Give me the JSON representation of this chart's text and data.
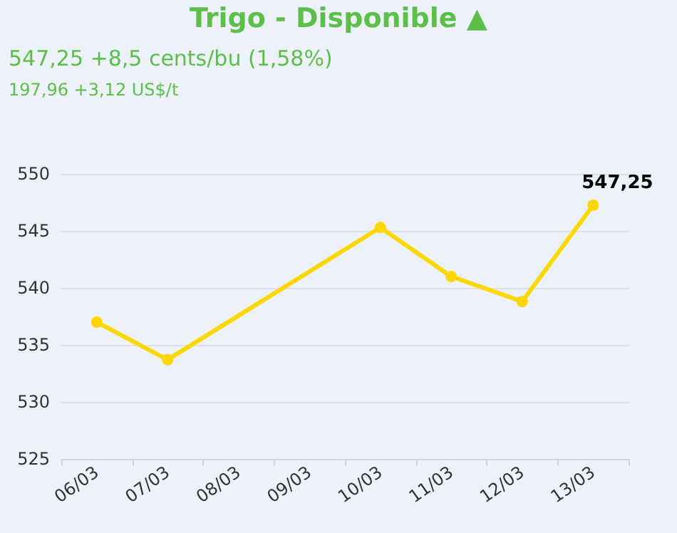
{
  "chart_data": {
    "type": "line",
    "title": "Trigo - Disponible ▲",
    "subtitle": "547,25 +8,5 cents/bu (1,58%)",
    "annotations": [
      "197,96 +3,12 US$/t"
    ],
    "categories": [
      "06/03",
      "07/03",
      "08/03",
      "09/03",
      "10/03",
      "11/03",
      "12/03",
      "13/03"
    ],
    "series": [
      {
        "color": "#ffd700",
        "values": [
          537.0,
          533.7,
          null,
          null,
          545.3,
          541.0,
          538.8,
          547.25
        ],
        "value_labels": [
          null,
          null,
          null,
          null,
          null,
          null,
          null,
          "547,25"
        ]
      }
    ],
    "ylim": [
      525,
      550
    ],
    "yticks": [
      525,
      530,
      535,
      540,
      545,
      550
    ],
    "grid": "y",
    "marker": "circle",
    "line_style": "solid"
  }
}
